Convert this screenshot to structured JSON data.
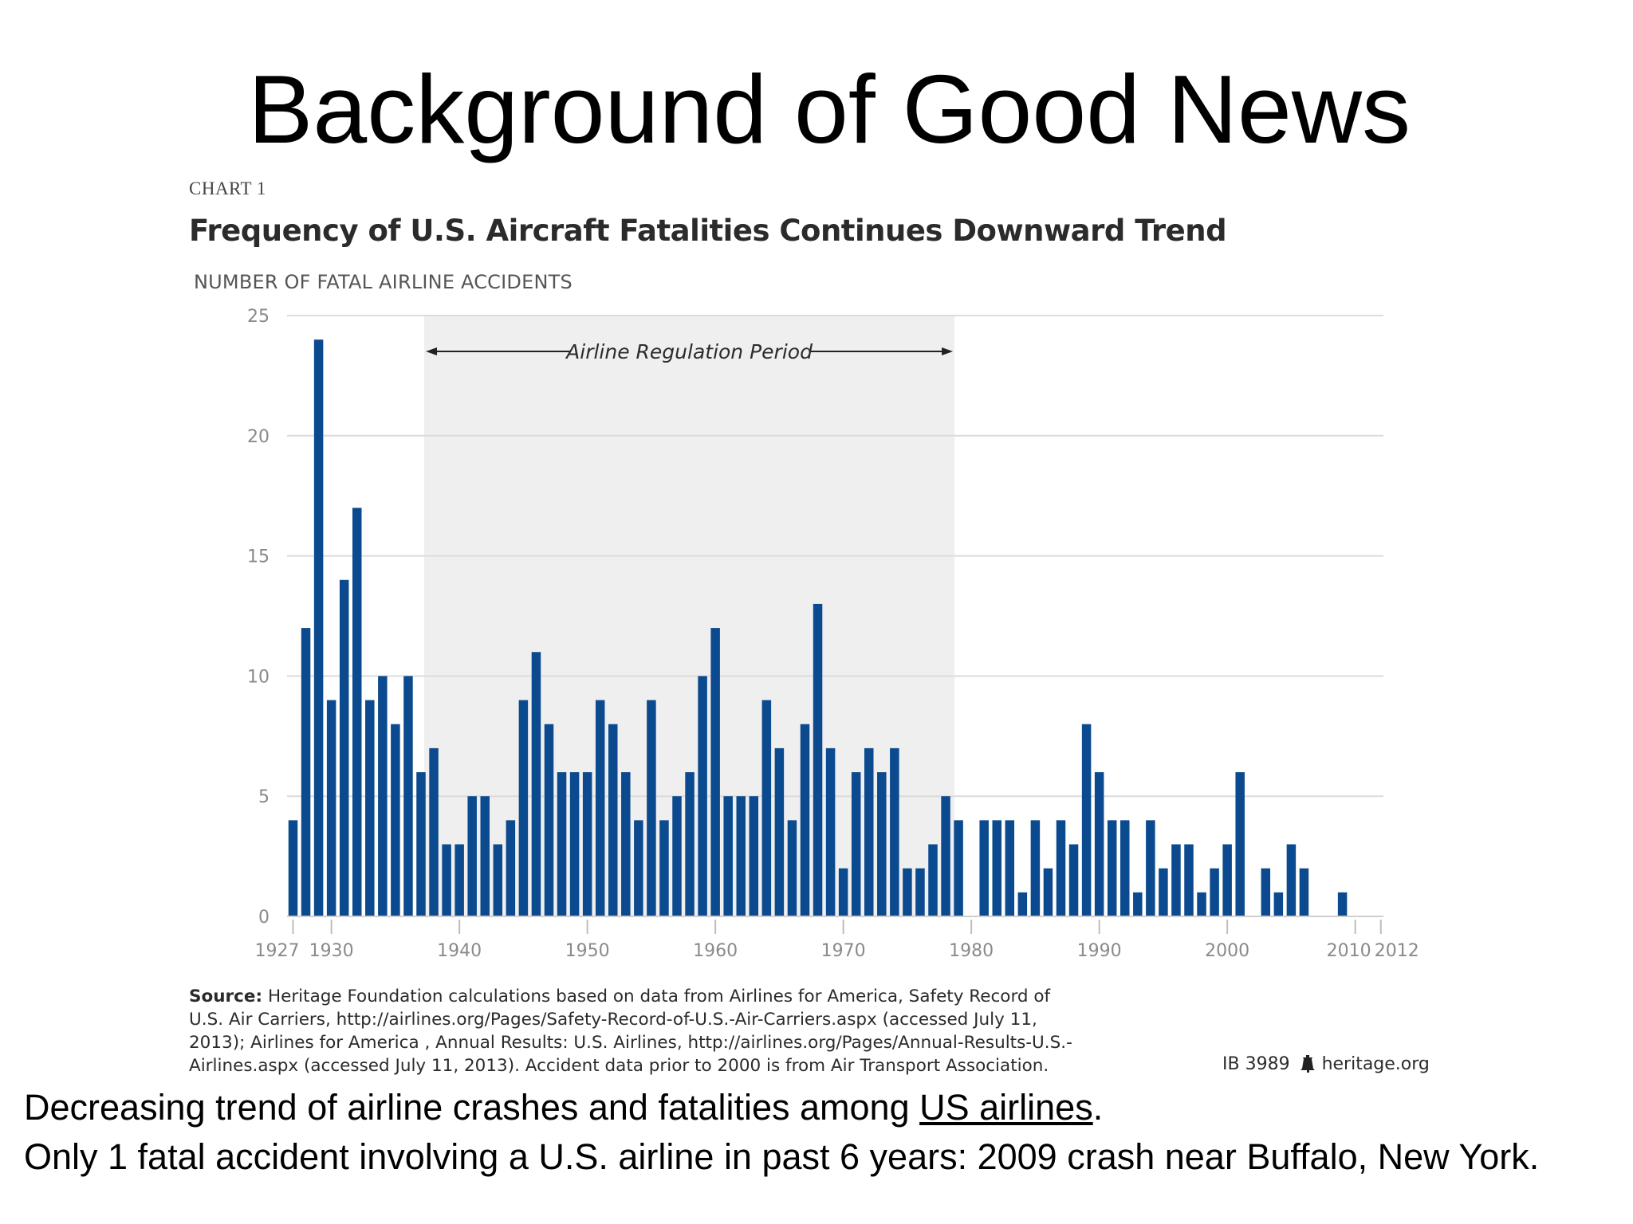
{
  "slide": {
    "title": "Background of Good News",
    "caption_1_pre": "Decreasing trend of airline crashes and fatalities among ",
    "caption_1_link": "US airlines",
    "caption_1_post": ".",
    "caption_2": "Only 1 fatal accident involving a U.S. airline in past 6 years: 2009 crash near Buffalo, New York."
  },
  "chart_data": {
    "type": "bar",
    "kicker": "CHART 1",
    "title": "Frequency of U.S. Aircraft Fatalities Continues Downward Trend",
    "ylabel": "NUMBER OF FATAL AIRLINE ACCIDENTS",
    "xlabel": "",
    "ylim": [
      0,
      25
    ],
    "y_ticks": [
      0,
      5,
      10,
      15,
      20,
      25
    ],
    "x_ticks": [
      1927,
      1930,
      1940,
      1950,
      1960,
      1970,
      1980,
      1990,
      2000,
      2010,
      2012
    ],
    "grid": true,
    "bar_color": "#0b4a8e",
    "annotation": {
      "label": "Airline Regulation Period",
      "start_year": 1938,
      "end_year": 1978,
      "shade_color": "#efefef"
    },
    "years": [
      1927,
      1928,
      1929,
      1930,
      1931,
      1932,
      1933,
      1934,
      1935,
      1936,
      1937,
      1938,
      1939,
      1940,
      1941,
      1942,
      1943,
      1944,
      1945,
      1946,
      1947,
      1948,
      1949,
      1950,
      1951,
      1952,
      1953,
      1954,
      1955,
      1956,
      1957,
      1958,
      1959,
      1960,
      1961,
      1962,
      1963,
      1964,
      1965,
      1966,
      1967,
      1968,
      1969,
      1970,
      1971,
      1972,
      1973,
      1974,
      1975,
      1976,
      1977,
      1978,
      1979,
      1980,
      1981,
      1982,
      1983,
      1984,
      1985,
      1986,
      1987,
      1988,
      1989,
      1990,
      1991,
      1992,
      1993,
      1994,
      1995,
      1996,
      1997,
      1998,
      1999,
      2000,
      2001,
      2002,
      2003,
      2004,
      2005,
      2006,
      2007,
      2008,
      2009,
      2010,
      2011,
      2012
    ],
    "values": [
      4,
      12,
      24,
      9,
      14,
      17,
      9,
      10,
      8,
      10,
      6,
      7,
      3,
      3,
      5,
      5,
      3,
      4,
      9,
      11,
      8,
      6,
      6,
      6,
      9,
      8,
      6,
      4,
      9,
      4,
      5,
      6,
      10,
      12,
      5,
      5,
      5,
      9,
      7,
      4,
      8,
      13,
      7,
      2,
      6,
      7,
      6,
      7,
      2,
      2,
      3,
      5,
      4,
      0,
      4,
      4,
      4,
      1,
      4,
      2,
      4,
      3,
      8,
      6,
      4,
      4,
      1,
      4,
      2,
      3,
      3,
      1,
      2,
      3,
      6,
      0,
      2,
      1,
      3,
      2,
      0,
      0,
      1,
      0,
      0,
      0
    ],
    "source_label": "Source:",
    "source_text": "Heritage Foundation calculations based on data from Airlines for America, Safety Record of U.S. Air Carriers, http://airlines.org/Pages/Safety-Record-of-U.S.-Air-Carriers.aspx (accessed July 11, 2013); Airlines for America , Annual Results: U.S. Airlines, http://airlines.org/Pages/Annual-Results-U.S.-Airlines.aspx (accessed July 11, 2013). Accident data prior to 2000 is from Air Transport Association.",
    "id_label": "IB 3989",
    "site_label": "heritage.org",
    "icon": "liberty-bell-icon"
  }
}
